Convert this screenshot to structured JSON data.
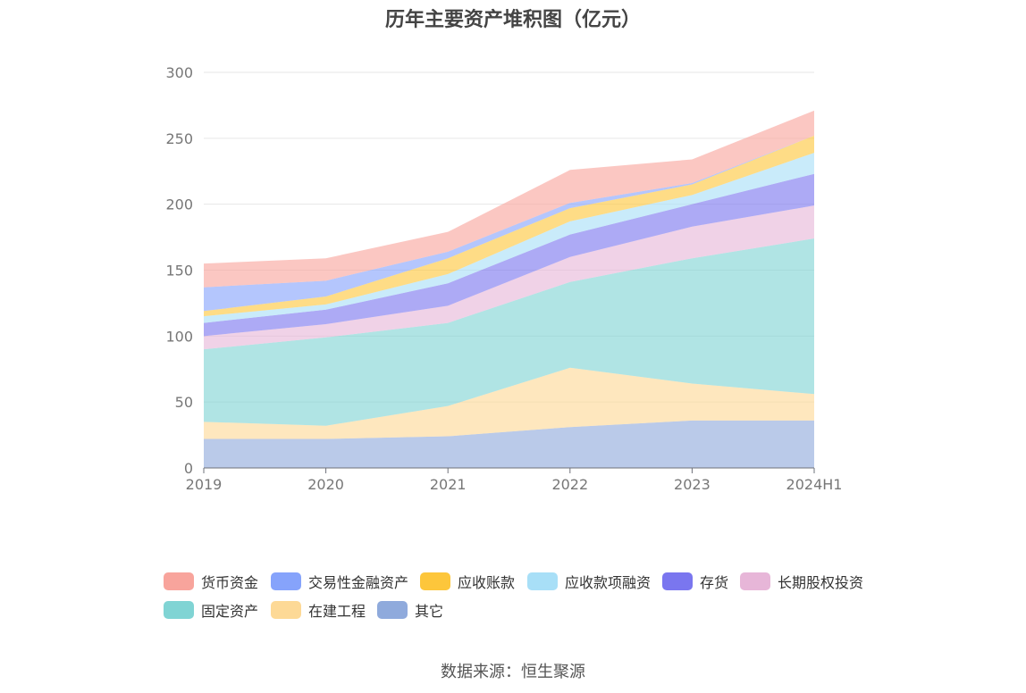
{
  "chart_data": {
    "type": "area",
    "stacked": true,
    "title": "历年主要资产堆积图（亿元）",
    "categories": [
      "2019",
      "2020",
      "2021",
      "2022",
      "2023",
      "2024H1"
    ],
    "ylim": [
      0,
      300
    ],
    "yticks": [
      0,
      50,
      100,
      150,
      200,
      250,
      300
    ],
    "grid": true,
    "legend_position": "bottom",
    "series": [
      {
        "name": "其它",
        "color": "#8faadc",
        "values": [
          22,
          22,
          24,
          31,
          36,
          36
        ]
      },
      {
        "name": "在建工程",
        "color": "#fdd996",
        "values": [
          13,
          10,
          23,
          45,
          28,
          20
        ]
      },
      {
        "name": "固定资产",
        "color": "#80d4d4",
        "values": [
          55,
          67,
          63,
          65,
          95,
          118
        ]
      },
      {
        "name": "长期股权投资",
        "color": "#e7b6d8",
        "values": [
          10,
          10,
          13,
          19,
          24,
          25
        ]
      },
      {
        "name": "存货",
        "color": "#7a76ef",
        "values": [
          10,
          11,
          17,
          17,
          17,
          24
        ]
      },
      {
        "name": "应收款项融资",
        "color": "#a8dff7",
        "values": [
          5,
          4,
          7,
          10,
          7,
          16
        ]
      },
      {
        "name": "应收账款",
        "color": "#fdc63b",
        "values": [
          4,
          6,
          12,
          10,
          8,
          13
        ]
      },
      {
        "name": "交易性金融资产",
        "color": "#86a3fb",
        "values": [
          18,
          12,
          5,
          4,
          1,
          0
        ]
      },
      {
        "name": "货币资金",
        "color": "#f8a49c",
        "values": [
          18,
          17,
          15,
          25,
          18,
          19
        ]
      }
    ]
  },
  "legend_order": [
    "货币资金",
    "交易性金融资产",
    "应收账款",
    "应收款项融资",
    "存货",
    "长期股权投资",
    "固定资产",
    "在建工程",
    "其它"
  ],
  "source_text": "数据来源：恒生聚源"
}
